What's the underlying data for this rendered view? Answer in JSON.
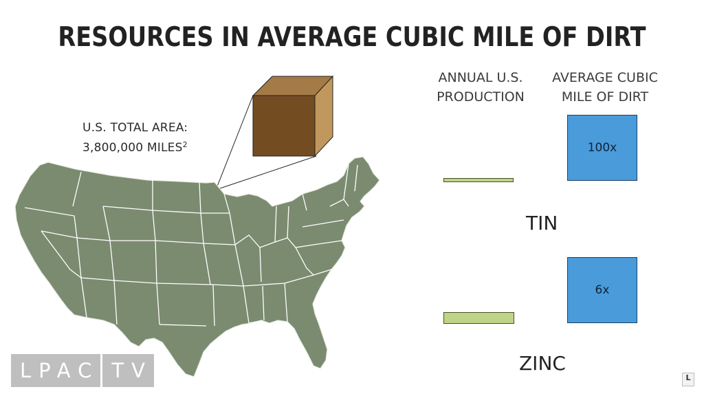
{
  "title": "RESOURCES IN AVERAGE CUBIC MILE OF DIRT",
  "area_label": {
    "line1": "U.S. TOTAL AREA:",
    "line2": "3,800,000 MILES",
    "superscript": "2"
  },
  "columns": {
    "production": {
      "line1": "ANNUAL U.S.",
      "line2": "PRODUCTION"
    },
    "dirt": {
      "line1": "AVERAGE CUBIC",
      "line2": "MILE OF DIRT"
    }
  },
  "rows": [
    {
      "metal": "TIN",
      "multiplier": "100x"
    },
    {
      "metal": "ZINC",
      "multiplier": "6x"
    }
  ],
  "logo": {
    "part1": "LPAC",
    "part2": "TV"
  },
  "corner_badge": "L",
  "colors": {
    "map_fill": "#7b8b70",
    "cube_front": "#744c22",
    "cube_top": "#a47a47",
    "cube_side": "#c0975d",
    "bar": "#bfd487",
    "square": "#4a9bd9"
  }
}
